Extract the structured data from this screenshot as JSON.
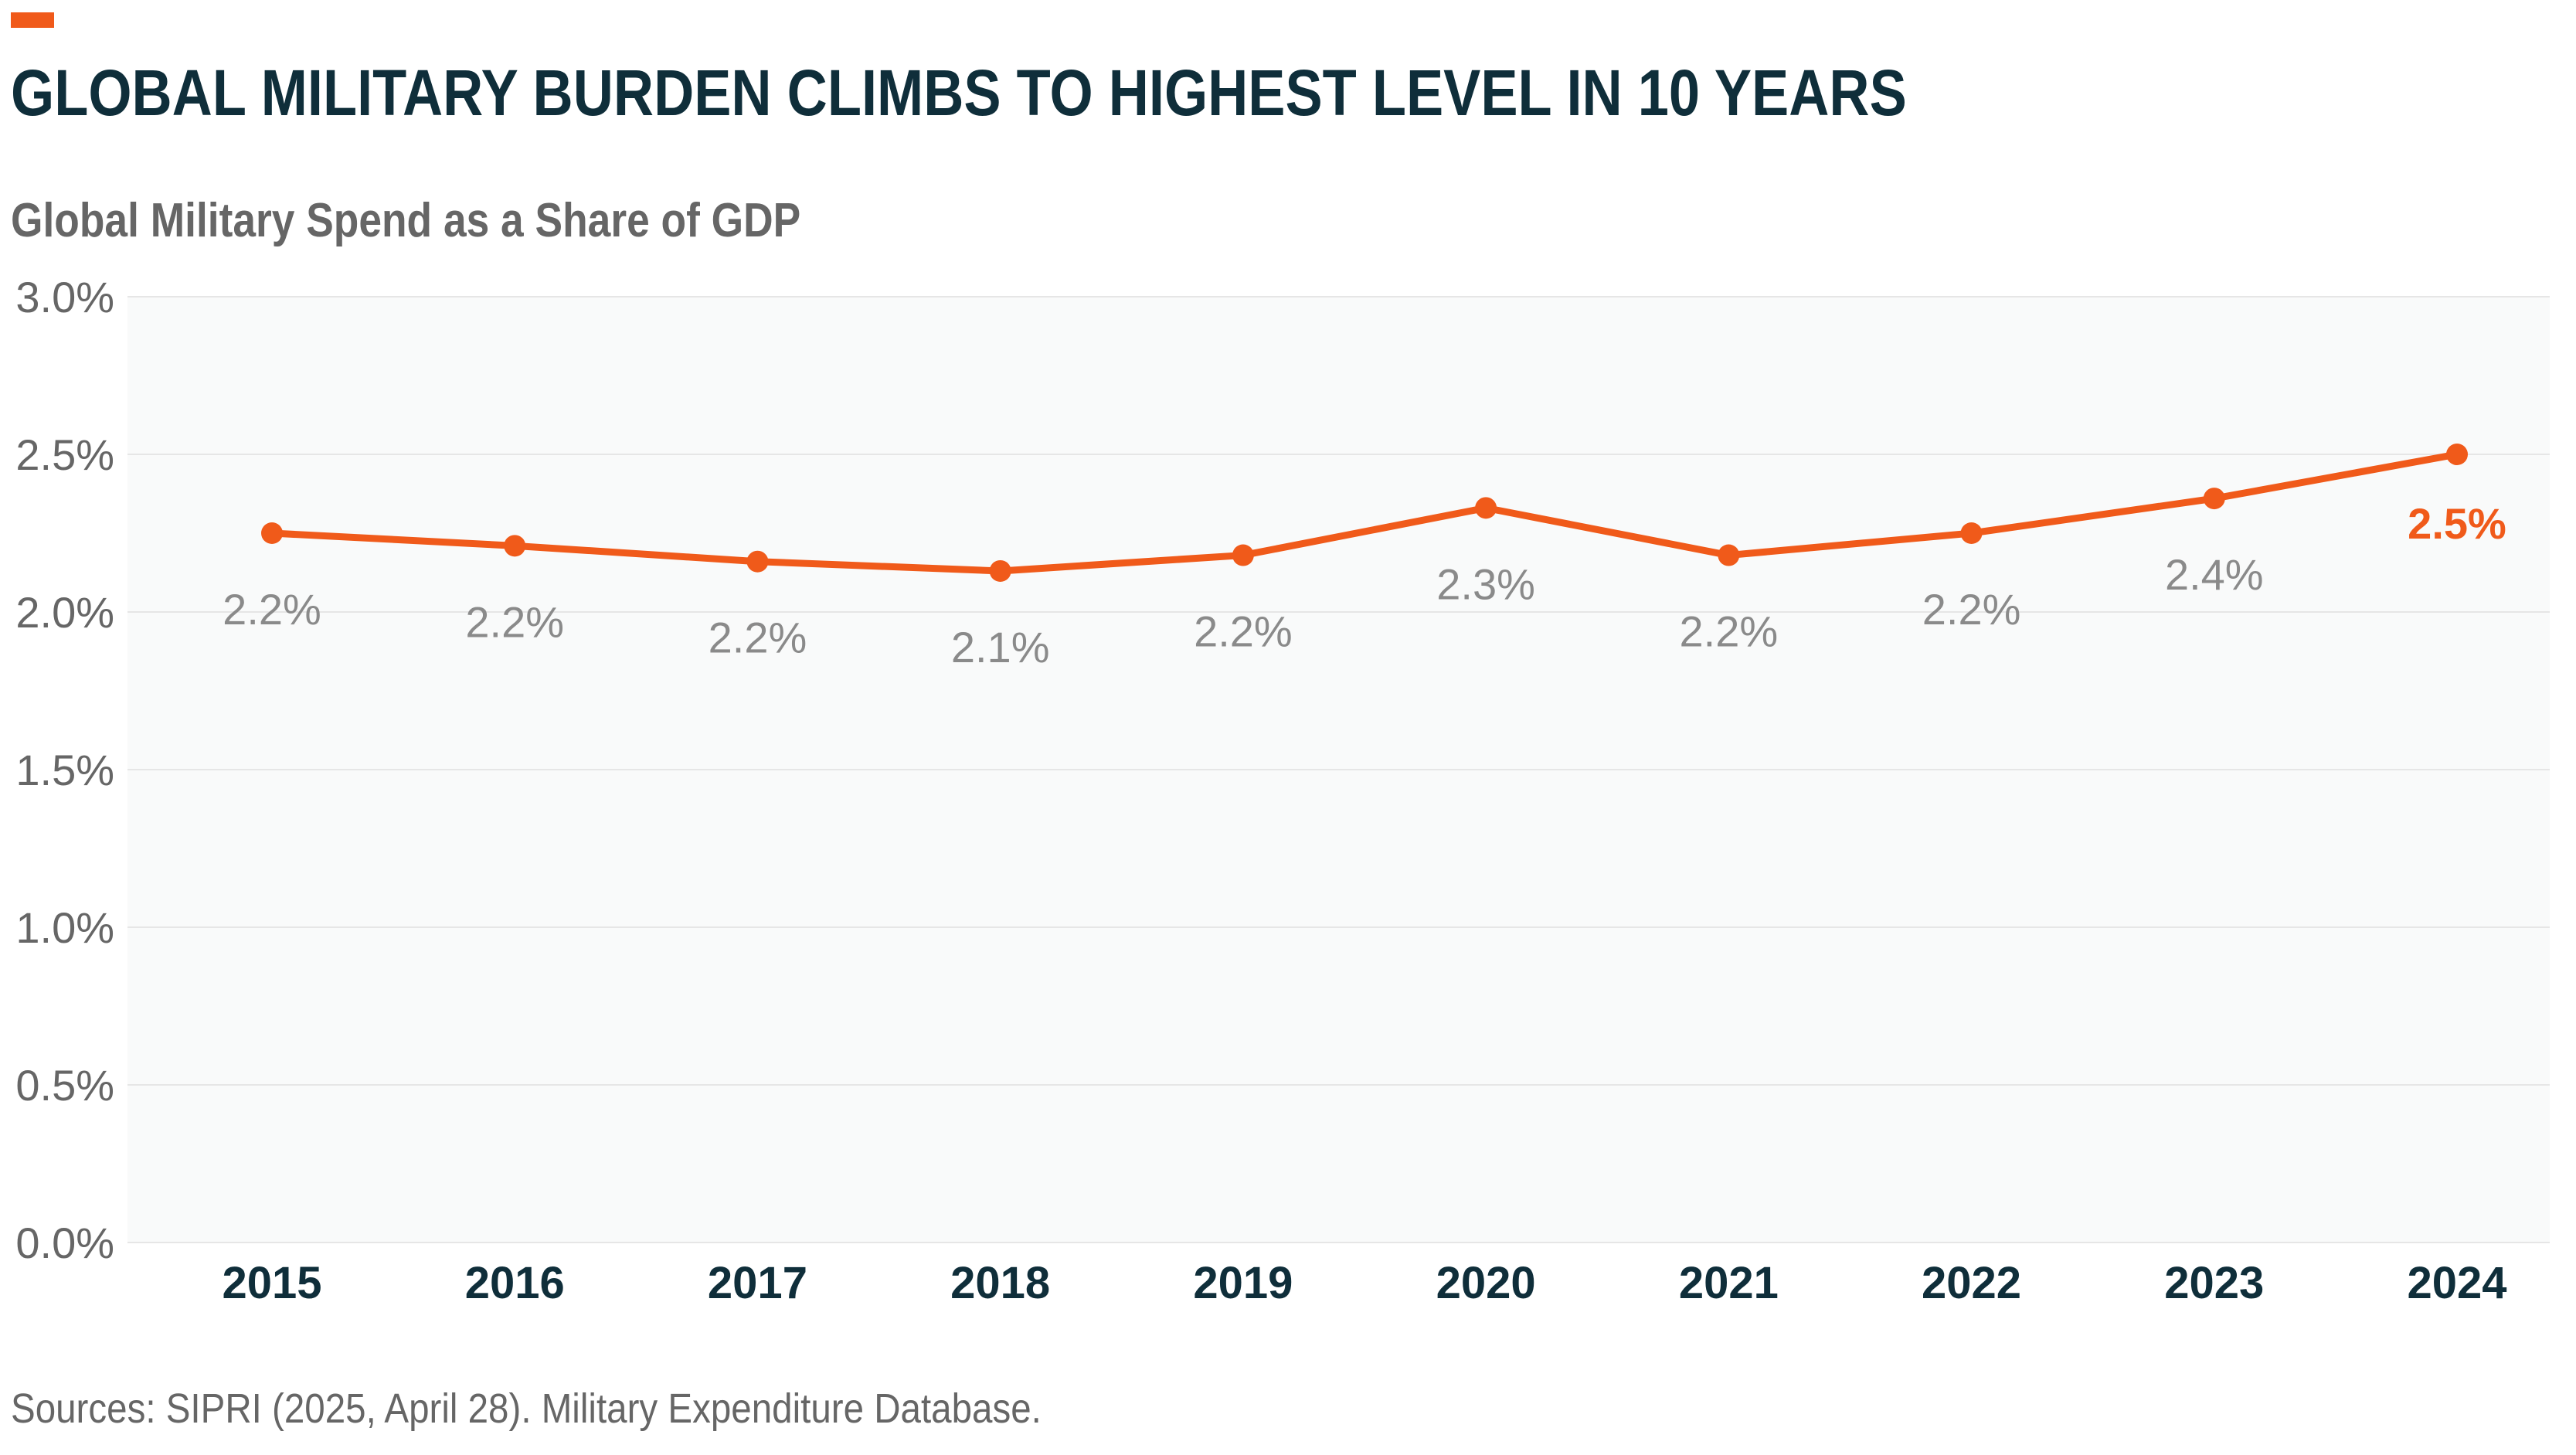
{
  "header": {
    "title": "GLOBAL MILITARY BURDEN CLIMBS TO HIGHEST LEVEL IN 10 YEARS",
    "subtitle": "Global Military Spend as a Share of GDP"
  },
  "footer": {
    "source": "Sources: SIPRI (2025, April 28). Military Expenditure Database."
  },
  "colors": {
    "accent": "#f05a1a",
    "title": "#0f2e3a",
    "muted_text": "#666666",
    "data_label": "#8a8a8a",
    "plot_background": "#f9fafa",
    "gridline": "#e6e6e6"
  },
  "chart_data": {
    "type": "line",
    "title": "Global Military Spend as a Share of GDP",
    "xlabel": "",
    "ylabel": "",
    "categories": [
      "2015",
      "2016",
      "2017",
      "2018",
      "2019",
      "2020",
      "2021",
      "2022",
      "2023",
      "2024"
    ],
    "series": [
      {
        "values": [
          2.25,
          2.21,
          2.16,
          2.13,
          2.18,
          2.33,
          2.18,
          2.25,
          2.36,
          2.5
        ],
        "labels": [
          "2.2%",
          "2.2%",
          "2.2%",
          "2.1%",
          "2.2%",
          "2.3%",
          "2.2%",
          "2.2%",
          "2.4%",
          "2.5%"
        ],
        "color": "#f05a1a",
        "highlight_last_label": true
      }
    ],
    "ylim": [
      0,
      3.0
    ],
    "yticks": [
      0,
      0.5,
      1.0,
      1.5,
      2.0,
      2.5,
      3.0
    ],
    "ytick_labels": [
      "0.0%",
      "0.5%",
      "1.0%",
      "1.5%",
      "2.0%",
      "2.5%",
      "3.0%"
    ],
    "grid": true,
    "legend": "none"
  }
}
